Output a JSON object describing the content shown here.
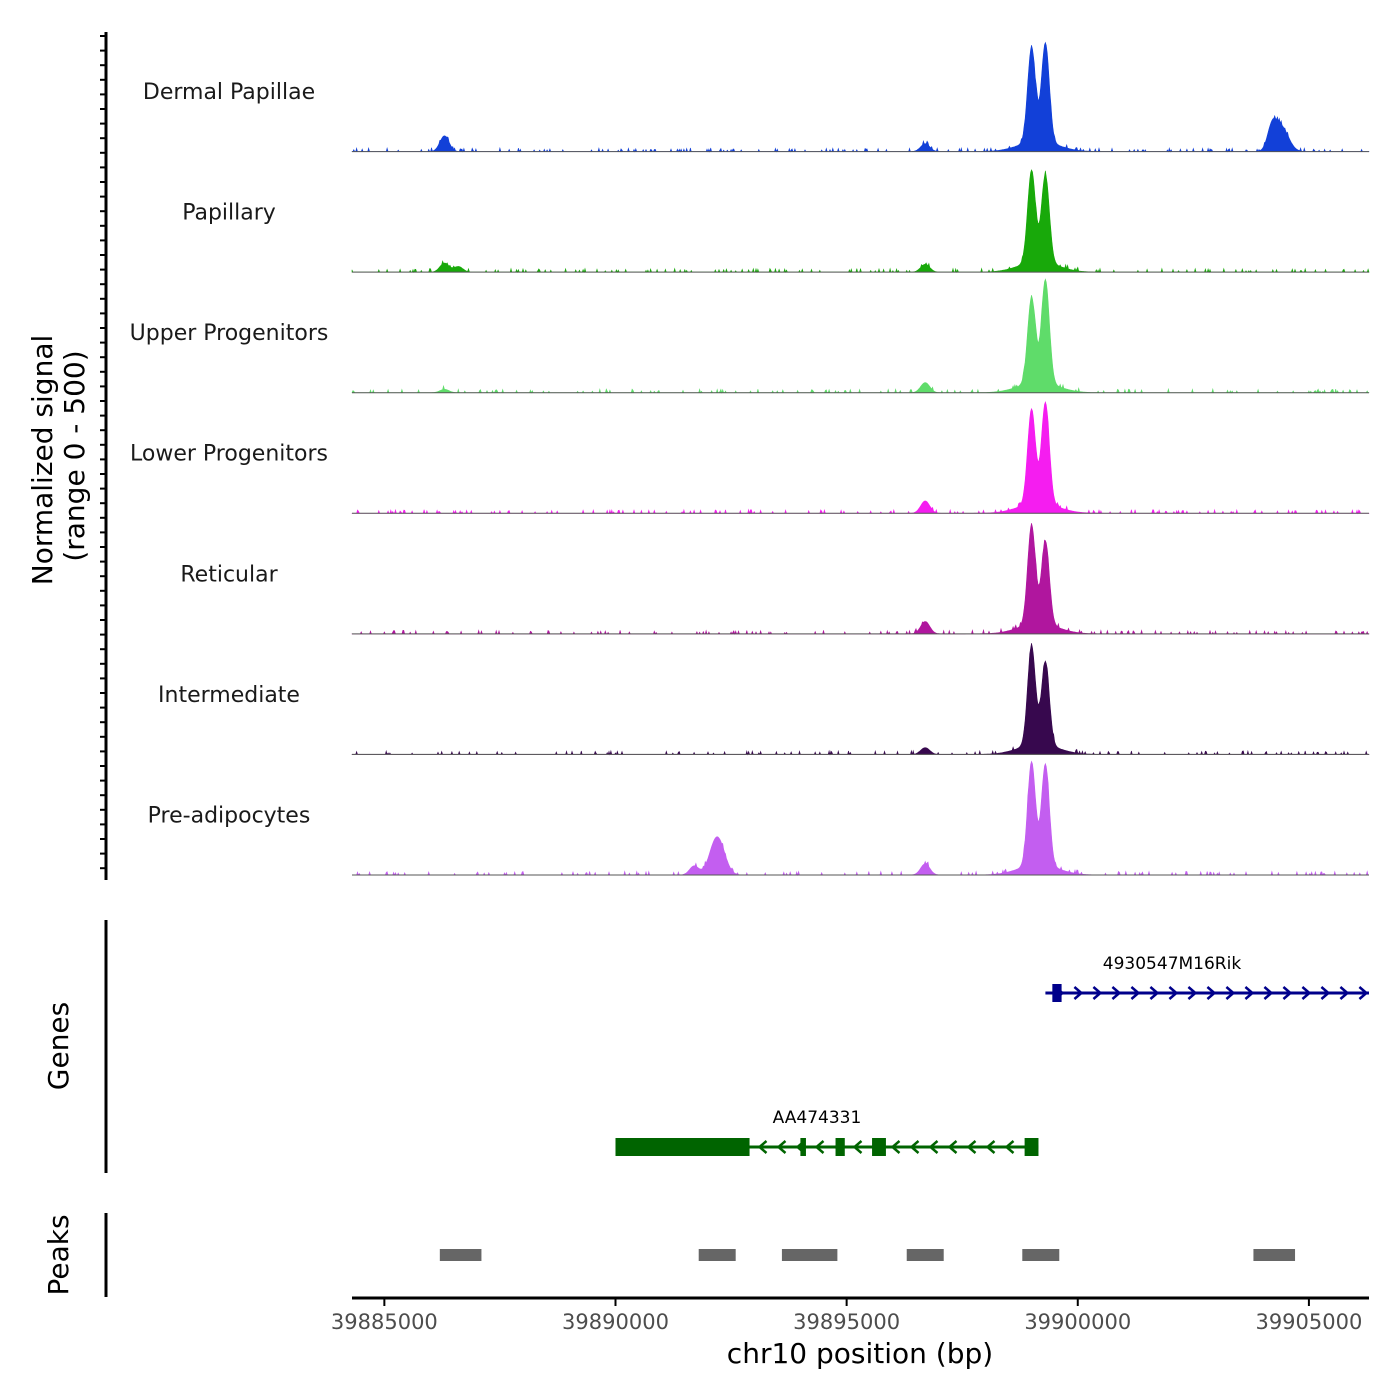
{
  "chart_data": {
    "type": "area",
    "title": "",
    "chromosome": "chr10",
    "xlabel": "chr10 position (bp)",
    "ylabel": "Normalized signal",
    "ylabel_sub": "(range 0 - 500)",
    "xlim": [
      39884300,
      39906300
    ],
    "ylim": [
      0,
      500
    ],
    "x_ticks": [
      39885000,
      39890000,
      39895000,
      39900000,
      39905000
    ],
    "x_tick_labels": [
      "39885000",
      "39890000",
      "39895000",
      "39900000",
      "39905000"
    ],
    "tracks": [
      {
        "name": "Dermal Papillae",
        "color": "#1240d8",
        "peaks": [
          [
            39886300,
            70
          ],
          [
            39896700,
            35
          ],
          [
            39899000,
            420
          ],
          [
            39899300,
            440
          ],
          [
            39904200,
            90
          ],
          [
            39904400,
            110
          ]
        ]
      },
      {
        "name": "Papillary",
        "color": "#18a90a",
        "peaks": [
          [
            39886300,
            40
          ],
          [
            39886600,
            25
          ],
          [
            39896700,
            35
          ],
          [
            39899000,
            410
          ],
          [
            39899300,
            390
          ]
        ]
      },
      {
        "name": "Upper Progenitors",
        "color": "#5fdc6a",
        "peaks": [
          [
            39886300,
            15
          ],
          [
            39896700,
            45
          ],
          [
            39899000,
            380
          ],
          [
            39899300,
            460
          ]
        ]
      },
      {
        "name": "Lower Progenitors",
        "color": "#f51df0",
        "peaks": [
          [
            39896700,
            55
          ],
          [
            39899000,
            420
          ],
          [
            39899300,
            450
          ]
        ]
      },
      {
        "name": "Reticular",
        "color": "#b0169e",
        "peaks": [
          [
            39896700,
            55
          ],
          [
            39899000,
            440
          ],
          [
            39899300,
            370
          ]
        ]
      },
      {
        "name": "Intermediate",
        "color": "#37084e",
        "peaks": [
          [
            39896700,
            30
          ],
          [
            39899000,
            440
          ],
          [
            39899300,
            370
          ]
        ]
      },
      {
        "name": "Pre-adipocytes",
        "color": "#c35ef0",
        "peaks": [
          [
            39891700,
            40
          ],
          [
            39892200,
            170
          ],
          [
            39896700,
            50
          ],
          [
            39899000,
            460
          ],
          [
            39899300,
            450
          ]
        ]
      }
    ],
    "genes": [
      {
        "name": "4930547M16Rik",
        "strand": "+",
        "start": 39899300,
        "end": 39906300,
        "color": "#00008b",
        "exons": [
          [
            39899450,
            39899650
          ]
        ]
      },
      {
        "name": "AA474331",
        "strand": "-",
        "start": 39890000,
        "end": 39899150,
        "color": "#006400",
        "exons": [
          [
            39890000,
            39892900
          ],
          [
            39894000,
            39894120
          ],
          [
            39894760,
            39894960
          ],
          [
            39895550,
            39895850
          ],
          [
            39898850,
            39899150
          ]
        ]
      }
    ],
    "genes_label": "Genes",
    "peaks_label": "Peaks",
    "peak_regions": [
      [
        39886200,
        39887100
      ],
      [
        39891800,
        39892600
      ],
      [
        39893600,
        39894800
      ],
      [
        39896300,
        39897100
      ],
      [
        39898800,
        39899600
      ],
      [
        39903800,
        39904700
      ]
    ]
  }
}
